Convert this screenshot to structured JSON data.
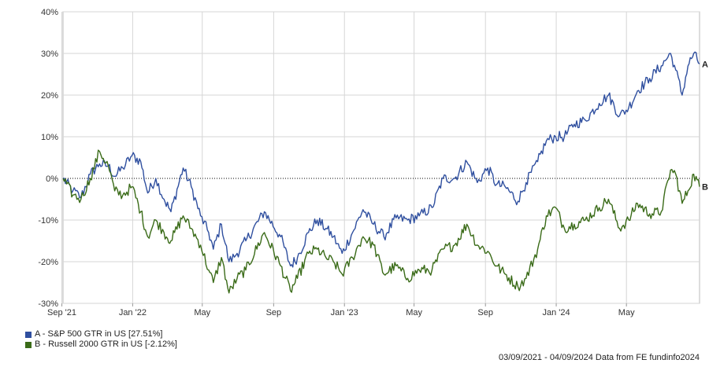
{
  "chart_data": {
    "type": "line",
    "x_tick_labels": [
      "Sep '21",
      "Jan '22",
      "May",
      "Sep",
      "Jan '23",
      "May",
      "Sep",
      "Jan '24",
      "May"
    ],
    "x_tick_dates": [
      "2021-09-01",
      "2022-01-01",
      "2022-05-01",
      "2022-09-01",
      "2023-01-01",
      "2023-05-01",
      "2023-09-01",
      "2024-01-01",
      "2024-05-01"
    ],
    "y_tick_labels": [
      "40%",
      "30%",
      "20%",
      "10%",
      "0%",
      "-10%",
      "-20%",
      "-30%"
    ],
    "y_ticks": [
      40,
      30,
      20,
      10,
      0,
      -10,
      -20,
      -30
    ],
    "ylim": [
      -30,
      40
    ],
    "xlim": [
      "2021-09-03",
      "2024-09-04"
    ],
    "grid": true,
    "zero_line": "dotted",
    "series": [
      {
        "name": "A - S&P 500 GTR in US [27.51%]",
        "end_label": "A",
        "color": "#2f4f9f",
        "points": [
          [
            "2021-09-03",
            0
          ],
          [
            "2021-09-20",
            -3
          ],
          [
            "2021-10-04",
            -4.5
          ],
          [
            "2021-10-20",
            1
          ],
          [
            "2021-11-05",
            3.5
          ],
          [
            "2021-11-20",
            3
          ],
          [
            "2021-12-01",
            0.5
          ],
          [
            "2021-12-15",
            2.5
          ],
          [
            "2021-12-31",
            5.5
          ],
          [
            "2022-01-15",
            4
          ],
          [
            "2022-01-27",
            -3.5
          ],
          [
            "2022-02-10",
            0
          ],
          [
            "2022-02-24",
            -5
          ],
          [
            "2022-03-08",
            -8
          ],
          [
            "2022-03-29",
            2.5
          ],
          [
            "2022-04-12",
            -2
          ],
          [
            "2022-04-28",
            -9
          ],
          [
            "2022-05-12",
            -13
          ],
          [
            "2022-05-20",
            -17
          ],
          [
            "2022-06-03",
            -11
          ],
          [
            "2022-06-16",
            -20
          ],
          [
            "2022-06-30",
            -18
          ],
          [
            "2022-07-15",
            -15
          ],
          [
            "2022-08-16",
            -8
          ],
          [
            "2022-09-13",
            -14
          ],
          [
            "2022-09-30",
            -21
          ],
          [
            "2022-10-12",
            -19
          ],
          [
            "2022-10-31",
            -13
          ],
          [
            "2022-11-15",
            -10
          ],
          [
            "2022-11-30",
            -12
          ],
          [
            "2022-12-13",
            -14
          ],
          [
            "2022-12-28",
            -18
          ],
          [
            "2023-01-15",
            -13
          ],
          [
            "2023-02-02",
            -7.5
          ],
          [
            "2023-02-20",
            -11
          ],
          [
            "2023-03-10",
            -14
          ],
          [
            "2023-03-31",
            -9.5
          ],
          [
            "2023-04-20",
            -10
          ],
          [
            "2023-05-10",
            -9
          ],
          [
            "2023-06-01",
            -7
          ],
          [
            "2023-06-20",
            0
          ],
          [
            "2023-07-10",
            0
          ],
          [
            "2023-07-31",
            4
          ],
          [
            "2023-08-18",
            -1
          ],
          [
            "2023-09-05",
            2.5
          ],
          [
            "2023-09-20",
            -1.5
          ],
          [
            "2023-10-05",
            -2
          ],
          [
            "2023-10-27",
            -5.5
          ],
          [
            "2023-11-10",
            -1
          ],
          [
            "2023-11-30",
            4
          ],
          [
            "2023-12-15",
            9
          ],
          [
            "2023-12-31",
            10
          ],
          [
            "2024-01-15",
            10
          ],
          [
            "2024-02-01",
            13
          ],
          [
            "2024-02-20",
            14
          ],
          [
            "2024-03-15",
            18
          ],
          [
            "2024-03-31",
            20
          ],
          [
            "2024-04-19",
            15
          ],
          [
            "2024-05-05",
            17
          ],
          [
            "2024-05-20",
            21
          ],
          [
            "2024-06-10",
            24
          ],
          [
            "2024-06-30",
            27
          ],
          [
            "2024-07-16",
            30
          ],
          [
            "2024-07-25",
            26
          ],
          [
            "2024-08-05",
            20
          ],
          [
            "2024-08-15",
            27
          ],
          [
            "2024-08-25",
            30
          ],
          [
            "2024-09-04",
            27.5
          ]
        ]
      },
      {
        "name": "B - Russell 2000 GTR in US [-2.12%]",
        "end_label": "B",
        "color": "#3a6b18",
        "points": [
          [
            "2021-09-03",
            0
          ],
          [
            "2021-09-20",
            -4
          ],
          [
            "2021-10-04",
            -5
          ],
          [
            "2021-10-20",
            0
          ],
          [
            "2021-11-05",
            6.5
          ],
          [
            "2021-11-20",
            3
          ],
          [
            "2021-12-01",
            -3
          ],
          [
            "2021-12-15",
            -4
          ],
          [
            "2021-12-31",
            -2
          ],
          [
            "2022-01-15",
            -8
          ],
          [
            "2022-01-27",
            -14
          ],
          [
            "2022-02-10",
            -10
          ],
          [
            "2022-02-24",
            -13
          ],
          [
            "2022-03-08",
            -15
          ],
          [
            "2022-03-29",
            -9
          ],
          [
            "2022-04-12",
            -12
          ],
          [
            "2022-04-28",
            -16
          ],
          [
            "2022-05-12",
            -22
          ],
          [
            "2022-05-20",
            -25
          ],
          [
            "2022-06-03",
            -19
          ],
          [
            "2022-06-16",
            -27.5
          ],
          [
            "2022-06-30",
            -24
          ],
          [
            "2022-07-15",
            -22
          ],
          [
            "2022-08-16",
            -13
          ],
          [
            "2022-09-13",
            -21
          ],
          [
            "2022-09-30",
            -27
          ],
          [
            "2022-10-12",
            -24
          ],
          [
            "2022-10-31",
            -18
          ],
          [
            "2022-11-15",
            -17
          ],
          [
            "2022-11-30",
            -19
          ],
          [
            "2022-12-13",
            -20
          ],
          [
            "2022-12-28",
            -23
          ],
          [
            "2023-01-15",
            -19
          ],
          [
            "2023-02-02",
            -14
          ],
          [
            "2023-02-20",
            -16
          ],
          [
            "2023-03-10",
            -23
          ],
          [
            "2023-03-31",
            -21
          ],
          [
            "2023-04-20",
            -24
          ],
          [
            "2023-05-10",
            -22
          ],
          [
            "2023-06-01",
            -22
          ],
          [
            "2023-06-20",
            -17
          ],
          [
            "2023-07-10",
            -16
          ],
          [
            "2023-07-31",
            -11
          ],
          [
            "2023-08-18",
            -16
          ],
          [
            "2023-09-05",
            -17.5
          ],
          [
            "2023-09-20",
            -21
          ],
          [
            "2023-10-05",
            -23
          ],
          [
            "2023-10-27",
            -26
          ],
          [
            "2023-11-10",
            -24
          ],
          [
            "2023-11-30",
            -17
          ],
          [
            "2023-12-15",
            -9
          ],
          [
            "2023-12-31",
            -7
          ],
          [
            "2024-01-15",
            -12
          ],
          [
            "2024-02-01",
            -11
          ],
          [
            "2024-02-20",
            -10
          ],
          [
            "2024-03-15",
            -7
          ],
          [
            "2024-03-31",
            -5
          ],
          [
            "2024-04-19",
            -12
          ],
          [
            "2024-05-05",
            -10
          ],
          [
            "2024-05-20",
            -6
          ],
          [
            "2024-06-10",
            -8.5
          ],
          [
            "2024-06-30",
            -8
          ],
          [
            "2024-07-16",
            2
          ],
          [
            "2024-07-25",
            1
          ],
          [
            "2024-08-05",
            -6
          ],
          [
            "2024-08-15",
            -3
          ],
          [
            "2024-08-25",
            1
          ],
          [
            "2024-09-04",
            -2
          ]
        ]
      }
    ]
  },
  "legend": {
    "a": "A - S&P 500 GTR in US [27.51%]",
    "b": "B - Russell 2000 GTR in US [-2.12%]"
  },
  "footer": "03/09/2021 - 04/09/2024 Data from FE fundinfo2024"
}
